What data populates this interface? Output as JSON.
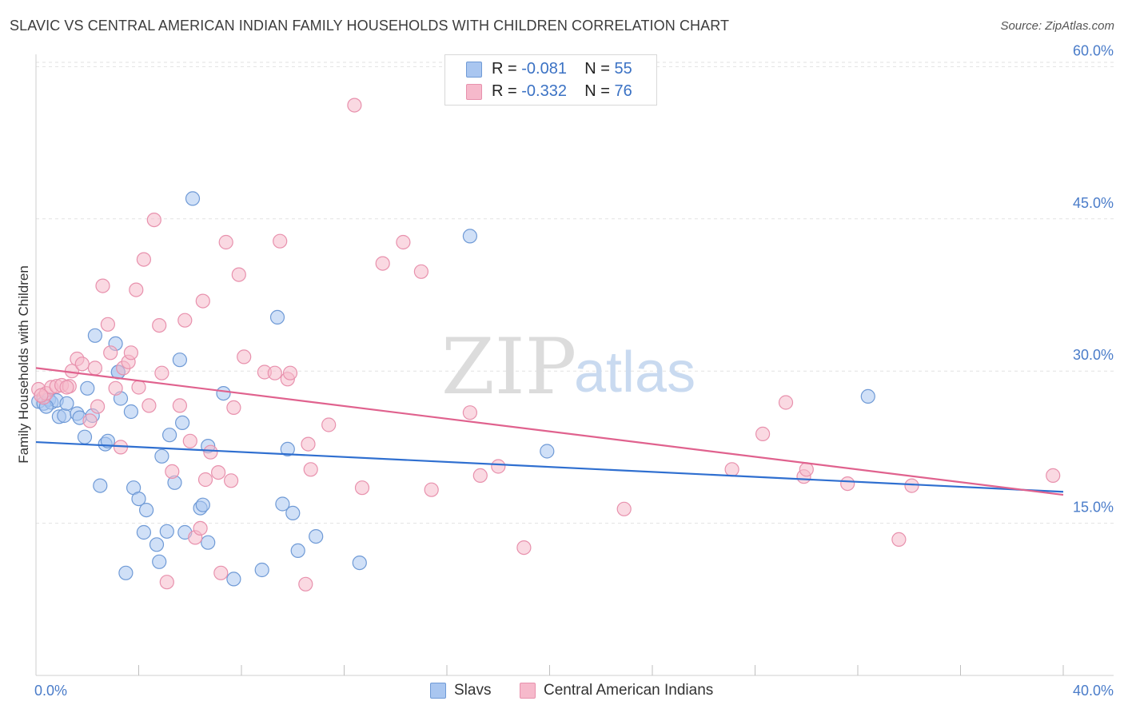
{
  "title": "SLAVIC VS CENTRAL AMERICAN INDIAN FAMILY HOUSEHOLDS WITH CHILDREN CORRELATION CHART",
  "source": "Source: ZipAtlas.com",
  "watermark": {
    "zip": "ZIP",
    "atlas": "atlas"
  },
  "legend": {
    "rows": [
      {
        "r_label": "R =",
        "r_value": "-0.081",
        "n_label": "N =",
        "n_value": "55",
        "color": "#a9c6f0"
      },
      {
        "r_label": "R =",
        "r_value": "-0.332",
        "n_label": "N =",
        "n_value": "76",
        "color": "#f6b9cb"
      }
    ]
  },
  "bottom_legend": [
    {
      "label": "Slavs",
      "color": "#a9c6f0"
    },
    {
      "label": "Central American Indians",
      "color": "#f6b9cb"
    }
  ],
  "chart_data": {
    "type": "scatter",
    "title": "SLAVIC VS CENTRAL AMERICAN INDIAN FAMILY HOUSEHOLDS WITH CHILDREN CORRELATION CHART",
    "xlabel": "",
    "ylabel": "Family Households with Children",
    "xlim": [
      0,
      40
    ],
    "ylim": [
      0,
      62
    ],
    "x_tick_labels": [
      "0.0%",
      "40.0%"
    ],
    "y_ticks": [
      15,
      30,
      45,
      60
    ],
    "y_tick_labels": [
      "15.0%",
      "30.0%",
      "45.0%",
      "60.0%"
    ],
    "grid": true,
    "legend_position": "top-center",
    "series": [
      {
        "name": "Slavs",
        "color": "#a9c6f0",
        "edge": "#6f9ad6",
        "trend_color": "#2f6fd0",
        "trend": {
          "x": [
            0,
            40
          ],
          "y": [
            23.0,
            18.1
          ]
        },
        "points": [
          [
            0.1,
            27.0
          ],
          [
            0.3,
            26.8
          ],
          [
            0.5,
            27.2
          ],
          [
            0.6,
            26.9
          ],
          [
            0.8,
            27.1
          ],
          [
            0.9,
            25.5
          ],
          [
            1.1,
            25.6
          ],
          [
            1.2,
            26.8
          ],
          [
            1.6,
            25.8
          ],
          [
            1.7,
            25.4
          ],
          [
            1.9,
            23.5
          ],
          [
            2.0,
            28.3
          ],
          [
            2.2,
            25.6
          ],
          [
            2.3,
            33.5
          ],
          [
            2.5,
            18.7
          ],
          [
            2.7,
            22.8
          ],
          [
            2.8,
            23.1
          ],
          [
            3.1,
            32.7
          ],
          [
            3.2,
            29.9
          ],
          [
            3.3,
            27.3
          ],
          [
            3.5,
            10.1
          ],
          [
            3.7,
            26.0
          ],
          [
            3.8,
            18.5
          ],
          [
            4.0,
            17.4
          ],
          [
            4.2,
            14.1
          ],
          [
            4.3,
            16.3
          ],
          [
            4.7,
            12.9
          ],
          [
            4.8,
            11.2
          ],
          [
            4.9,
            21.6
          ],
          [
            5.1,
            14.2
          ],
          [
            5.2,
            23.7
          ],
          [
            5.4,
            19.0
          ],
          [
            5.6,
            31.1
          ],
          [
            5.7,
            24.9
          ],
          [
            5.8,
            14.1
          ],
          [
            6.1,
            47.0
          ],
          [
            6.4,
            16.5
          ],
          [
            6.5,
            16.8
          ],
          [
            6.7,
            13.1
          ],
          [
            6.7,
            22.6
          ],
          [
            7.3,
            27.8
          ],
          [
            7.7,
            9.5
          ],
          [
            8.8,
            10.4
          ],
          [
            9.4,
            35.3
          ],
          [
            9.6,
            16.9
          ],
          [
            9.8,
            22.3
          ],
          [
            10.0,
            16.0
          ],
          [
            10.2,
            12.3
          ],
          [
            10.9,
            13.7
          ],
          [
            12.6,
            11.1
          ],
          [
            16.9,
            43.3
          ],
          [
            19.9,
            22.1
          ],
          [
            32.4,
            27.5
          ],
          [
            0.4,
            26.5
          ],
          [
            3.2,
            29.9
          ]
        ]
      },
      {
        "name": "Central American Indians",
        "color": "#f6b9cb",
        "edge": "#e891ad",
        "trend_color": "#e0628e",
        "trend": {
          "x": [
            0,
            40
          ],
          "y": [
            30.3,
            17.8
          ]
        },
        "points": [
          [
            0.1,
            28.2
          ],
          [
            0.3,
            27.4
          ],
          [
            0.4,
            27.8
          ],
          [
            0.6,
            28.4
          ],
          [
            0.8,
            28.5
          ],
          [
            1.0,
            28.6
          ],
          [
            1.3,
            28.5
          ],
          [
            1.4,
            30.0
          ],
          [
            1.6,
            31.2
          ],
          [
            1.8,
            30.7
          ],
          [
            2.1,
            25.1
          ],
          [
            2.3,
            30.3
          ],
          [
            2.4,
            26.5
          ],
          [
            2.6,
            38.4
          ],
          [
            2.8,
            34.6
          ],
          [
            2.9,
            31.8
          ],
          [
            3.1,
            28.3
          ],
          [
            3.3,
            22.5
          ],
          [
            3.4,
            30.3
          ],
          [
            3.6,
            30.9
          ],
          [
            3.7,
            31.8
          ],
          [
            3.9,
            38.0
          ],
          [
            4.0,
            28.4
          ],
          [
            4.2,
            41.0
          ],
          [
            4.4,
            26.6
          ],
          [
            4.6,
            44.9
          ],
          [
            4.8,
            34.5
          ],
          [
            4.9,
            29.8
          ],
          [
            5.1,
            9.2
          ],
          [
            5.3,
            20.1
          ],
          [
            5.6,
            26.6
          ],
          [
            5.8,
            35.0
          ],
          [
            6.0,
            23.1
          ],
          [
            6.2,
            13.6
          ],
          [
            6.4,
            14.5
          ],
          [
            6.5,
            36.9
          ],
          [
            6.6,
            19.3
          ],
          [
            6.8,
            22.0
          ],
          [
            7.1,
            20.0
          ],
          [
            7.2,
            10.1
          ],
          [
            7.4,
            42.7
          ],
          [
            7.6,
            19.2
          ],
          [
            7.7,
            26.4
          ],
          [
            7.9,
            39.5
          ],
          [
            8.1,
            31.4
          ],
          [
            8.9,
            29.9
          ],
          [
            9.3,
            29.8
          ],
          [
            9.5,
            42.8
          ],
          [
            9.8,
            29.2
          ],
          [
            9.9,
            29.8
          ],
          [
            10.5,
            9.0
          ],
          [
            10.6,
            22.8
          ],
          [
            10.7,
            20.3
          ],
          [
            11.4,
            24.7
          ],
          [
            12.7,
            18.5
          ],
          [
            12.4,
            56.2
          ],
          [
            13.5,
            40.6
          ],
          [
            14.3,
            42.7
          ],
          [
            15.0,
            39.8
          ],
          [
            15.4,
            18.3
          ],
          [
            16.9,
            25.9
          ],
          [
            17.3,
            19.7
          ],
          [
            18.0,
            20.6
          ],
          [
            19.0,
            12.6
          ],
          [
            22.9,
            16.4
          ],
          [
            27.1,
            20.3
          ],
          [
            28.3,
            23.8
          ],
          [
            29.2,
            26.9
          ],
          [
            29.9,
            19.6
          ],
          [
            30.0,
            20.3
          ],
          [
            31.6,
            18.9
          ],
          [
            33.6,
            13.4
          ],
          [
            34.1,
            18.7
          ],
          [
            39.6,
            19.7
          ],
          [
            0.2,
            27.6
          ],
          [
            1.2,
            28.4
          ]
        ]
      }
    ]
  }
}
